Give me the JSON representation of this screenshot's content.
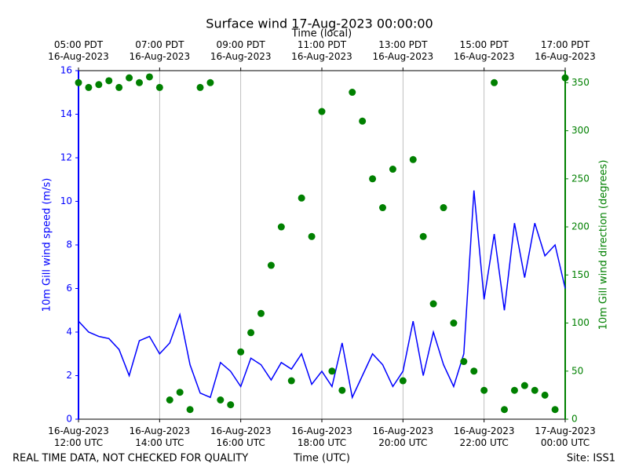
{
  "chart_data": {
    "type": "line-scatter",
    "title": "Surface wind 17-Aug-2023 00:00:00",
    "xlabel": "Time (UTC)",
    "x2label": "Time (local)",
    "ylabel": "10m Gill wind speed (m/s)",
    "y2label": "10m Gill wind direction (degrees)",
    "footer_left": "REAL TIME DATA, NOT CHECKED FOR QUALITY",
    "footer_right": "Site: ISS1",
    "grid": true,
    "xlim": [
      "2023-08-16T12:00",
      "2023-08-17T00:00"
    ],
    "xticks": [
      {
        "value": "2023-08-16T12:00",
        "label": "16-Aug-2023\n12:00 UTC"
      },
      {
        "value": "2023-08-16T14:00",
        "label": "16-Aug-2023\n14:00 UTC"
      },
      {
        "value": "2023-08-16T16:00",
        "label": "16-Aug-2023\n16:00 UTC"
      },
      {
        "value": "2023-08-16T18:00",
        "label": "16-Aug-2023\n18:00 UTC"
      },
      {
        "value": "2023-08-16T20:00",
        "label": "16-Aug-2023\n20:00 UTC"
      },
      {
        "value": "2023-08-16T22:00",
        "label": "16-Aug-2023\n22:00 UTC"
      },
      {
        "value": "2023-08-17T00:00",
        "label": "17-Aug-2023\n00:00 UTC"
      }
    ],
    "x2ticks": [
      {
        "value": "2023-08-16T12:00",
        "label": "05:00 PDT\n16-Aug-2023"
      },
      {
        "value": "2023-08-16T14:00",
        "label": "07:00 PDT\n16-Aug-2023"
      },
      {
        "value": "2023-08-16T16:00",
        "label": "09:00 PDT\n16-Aug-2023"
      },
      {
        "value": "2023-08-16T18:00",
        "label": "11:00 PDT\n16-Aug-2023"
      },
      {
        "value": "2023-08-16T20:00",
        "label": "13:00 PDT\n16-Aug-2023"
      },
      {
        "value": "2023-08-16T22:00",
        "label": "15:00 PDT\n16-Aug-2023"
      },
      {
        "value": "2023-08-17T00:00",
        "label": "17:00 PDT\n16-Aug-2023"
      }
    ],
    "ylim": [
      0,
      16
    ],
    "yticks": [
      0,
      2,
      4,
      6,
      8,
      10,
      12,
      14,
      16
    ],
    "y2lim": [
      0,
      362.5
    ],
    "y2ticks": [
      0,
      50,
      100,
      150,
      200,
      250,
      300,
      350
    ],
    "x": [
      "2023-08-16T12:00",
      "2023-08-16T12:15",
      "2023-08-16T12:30",
      "2023-08-16T12:45",
      "2023-08-16T13:00",
      "2023-08-16T13:15",
      "2023-08-16T13:30",
      "2023-08-16T13:45",
      "2023-08-16T14:00",
      "2023-08-16T14:15",
      "2023-08-16T14:30",
      "2023-08-16T14:45",
      "2023-08-16T15:00",
      "2023-08-16T15:15",
      "2023-08-16T15:30",
      "2023-08-16T15:45",
      "2023-08-16T16:00",
      "2023-08-16T16:15",
      "2023-08-16T16:30",
      "2023-08-16T16:45",
      "2023-08-16T17:00",
      "2023-08-16T17:15",
      "2023-08-16T17:30",
      "2023-08-16T17:45",
      "2023-08-16T18:00",
      "2023-08-16T18:15",
      "2023-08-16T18:30",
      "2023-08-16T18:45",
      "2023-08-16T19:00",
      "2023-08-16T19:15",
      "2023-08-16T19:30",
      "2023-08-16T19:45",
      "2023-08-16T20:00",
      "2023-08-16T20:15",
      "2023-08-16T20:30",
      "2023-08-16T20:45",
      "2023-08-16T21:00",
      "2023-08-16T21:15",
      "2023-08-16T21:30",
      "2023-08-16T21:45",
      "2023-08-16T22:00",
      "2023-08-16T22:15",
      "2023-08-16T22:30",
      "2023-08-16T22:45",
      "2023-08-16T23:00",
      "2023-08-16T23:15",
      "2023-08-16T23:30",
      "2023-08-16T23:45",
      "2023-08-17T00:00"
    ],
    "series": [
      {
        "name": "Wind speed",
        "color": "#0000ff",
        "axis": "y",
        "values": [
          4.5,
          4.0,
          3.8,
          3.7,
          3.2,
          2.0,
          3.6,
          3.8,
          3.0,
          3.5,
          4.8,
          2.5,
          1.2,
          1.0,
          2.6,
          2.2,
          1.5,
          2.8,
          2.5,
          1.8,
          2.6,
          2.3,
          3.0,
          1.6,
          2.2,
          1.5,
          3.5,
          1.0,
          2.0,
          3.0,
          2.5,
          1.5,
          2.2,
          4.5,
          2.0,
          4.0,
          2.5,
          1.5,
          3.0,
          10.5,
          5.5,
          8.5,
          5.0,
          9.0,
          6.5,
          9.0,
          7.5,
          8.0,
          6.0
        ]
      },
      {
        "name": "Wind direction",
        "color": "#008000",
        "axis": "y2",
        "values": [
          350,
          345,
          348,
          352,
          345,
          355,
          350,
          356,
          345,
          20,
          28,
          10,
          345,
          350,
          20,
          15,
          70,
          90,
          110,
          160,
          200,
          40,
          230,
          190,
          320,
          50,
          30,
          340,
          310,
          250,
          220,
          260,
          40,
          270,
          190,
          120,
          220,
          100,
          60,
          50,
          30,
          350,
          10,
          30,
          35,
          30,
          25,
          10,
          355
        ]
      }
    ]
  }
}
